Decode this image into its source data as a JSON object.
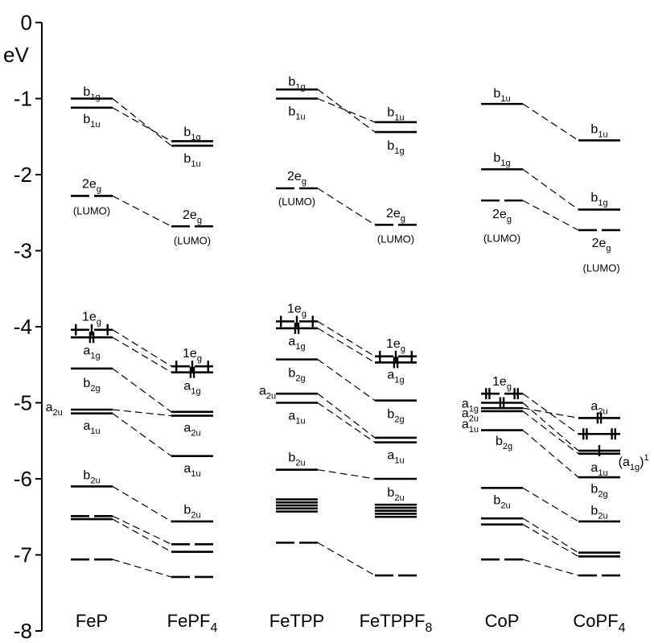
{
  "chart_data": {
    "type": "energy-level-diagram",
    "y_unit": "eV",
    "y_ticks": [
      "0",
      "-1",
      "-2",
      "-3",
      "-4",
      "-5",
      "-6",
      "-7",
      "-8"
    ],
    "ylim": [
      -8,
      0
    ],
    "columns": [
      {
        "name": "FeP",
        "sub": ""
      },
      {
        "name": "FePF",
        "sub": "4"
      },
      {
        "name": "FeTPP",
        "sub": ""
      },
      {
        "name": "FeTPPF",
        "sub": "8"
      },
      {
        "name": "CoP",
        "sub": ""
      },
      {
        "name": "CoPF",
        "sub": "4"
      }
    ],
    "levels": [
      {
        "id": "p1",
        "col": 0,
        "e": -1.0
      },
      {
        "id": "p2",
        "col": 0,
        "e": -1.12
      },
      {
        "id": "p3",
        "col": 0,
        "e": -2.28,
        "split": true
      },
      {
        "id": "p4",
        "col": 0,
        "e": -4.04,
        "split": true,
        "spins": [
          0.12,
          0.5,
          0.88
        ]
      },
      {
        "id": "p5",
        "col": 0,
        "e": -4.14,
        "spins": [
          0.46,
          0.54
        ]
      },
      {
        "id": "p6",
        "col": 0,
        "e": -4.55
      },
      {
        "id": "p7",
        "col": 0,
        "e": -5.09
      },
      {
        "id": "p8",
        "col": 0,
        "e": -5.14
      },
      {
        "id": "p9",
        "col": 0,
        "e": -6.1
      },
      {
        "id": "p10",
        "col": 0,
        "e": -6.49,
        "split": true
      },
      {
        "id": "p11",
        "col": 0,
        "e": -6.53
      },
      {
        "id": "p12",
        "col": 0,
        "e": -7.06,
        "split": true
      },
      {
        "id": "q1",
        "col": 1,
        "e": -1.56
      },
      {
        "id": "q2",
        "col": 1,
        "e": -1.62
      },
      {
        "id": "q3",
        "col": 1,
        "e": -2.68,
        "split": true
      },
      {
        "id": "q4",
        "col": 1,
        "e": -4.52,
        "split": true,
        "spins": [
          0.12,
          0.5,
          0.88
        ]
      },
      {
        "id": "q5",
        "col": 1,
        "e": -4.6,
        "spins": [
          0.46,
          0.54
        ]
      },
      {
        "id": "q6",
        "col": 1,
        "e": -5.12
      },
      {
        "id": "q7",
        "col": 1,
        "e": -5.17
      },
      {
        "id": "q8",
        "col": 1,
        "e": -5.7
      },
      {
        "id": "q9",
        "col": 1,
        "e": -6.56
      },
      {
        "id": "q10",
        "col": 1,
        "e": -6.86,
        "split": true
      },
      {
        "id": "q11",
        "col": 1,
        "e": -6.96
      },
      {
        "id": "q12",
        "col": 1,
        "e": -7.29,
        "split": true
      },
      {
        "id": "r1",
        "col": 2,
        "e": -0.88
      },
      {
        "id": "r2",
        "col": 2,
        "e": -1.0
      },
      {
        "id": "r3",
        "col": 2,
        "e": -2.18,
        "split": true
      },
      {
        "id": "r4",
        "col": 2,
        "e": -3.93,
        "split": true,
        "spins": [
          0.12,
          0.5,
          0.88
        ]
      },
      {
        "id": "r5",
        "col": 2,
        "e": -4.02,
        "spins": [
          0.46,
          0.54
        ]
      },
      {
        "id": "r6",
        "col": 2,
        "e": -4.43
      },
      {
        "id": "r7",
        "col": 2,
        "e": -4.88
      },
      {
        "id": "r8",
        "col": 2,
        "e": -5.0
      },
      {
        "id": "r9",
        "col": 2,
        "e": -5.88
      },
      {
        "id": "r10",
        "col": 2,
        "e": -6.27
      },
      {
        "id": "r11",
        "col": 2,
        "e": -6.31
      },
      {
        "id": "r12",
        "col": 2,
        "e": -6.35
      },
      {
        "id": "r13",
        "col": 2,
        "e": -6.39
      },
      {
        "id": "r14",
        "col": 2,
        "e": -6.43
      },
      {
        "id": "r15",
        "col": 2,
        "e": -6.84,
        "split": true
      },
      {
        "id": "s1",
        "col": 3,
        "e": -1.31
      },
      {
        "id": "s2",
        "col": 3,
        "e": -1.44
      },
      {
        "id": "s3",
        "col": 3,
        "e": -2.66,
        "split": true
      },
      {
        "id": "s4",
        "col": 3,
        "e": -4.39,
        "split": true,
        "spins": [
          0.12,
          0.5,
          0.88
        ]
      },
      {
        "id": "s5",
        "col": 3,
        "e": -4.47,
        "spins": [
          0.46,
          0.54
        ]
      },
      {
        "id": "s6",
        "col": 3,
        "e": -4.97
      },
      {
        "id": "s7",
        "col": 3,
        "e": -5.46
      },
      {
        "id": "s8",
        "col": 3,
        "e": -5.52
      },
      {
        "id": "s9",
        "col": 3,
        "e": -6.0
      },
      {
        "id": "s10",
        "col": 3,
        "e": -6.34
      },
      {
        "id": "s11",
        "col": 3,
        "e": -6.38
      },
      {
        "id": "s12",
        "col": 3,
        "e": -6.42
      },
      {
        "id": "s13",
        "col": 3,
        "e": -6.46
      },
      {
        "id": "s14",
        "col": 3,
        "e": -6.5
      },
      {
        "id": "s15",
        "col": 3,
        "e": -7.27,
        "split": true
      },
      {
        "id": "t1",
        "col": 4,
        "e": -1.07
      },
      {
        "id": "t2",
        "col": 4,
        "e": -1.93
      },
      {
        "id": "t3",
        "col": 4,
        "e": -2.34,
        "split": true
      },
      {
        "id": "t4",
        "col": 4,
        "e": -4.88,
        "split": true,
        "spins": [
          0.12,
          0.2,
          0.8,
          0.88
        ]
      },
      {
        "id": "t5",
        "col": 4,
        "e": -5.0,
        "spins": [
          0.46,
          0.54
        ]
      },
      {
        "id": "t6",
        "col": 4,
        "e": -5.07
      },
      {
        "id": "t7",
        "col": 4,
        "e": -5.11
      },
      {
        "id": "t8",
        "col": 4,
        "e": -5.36
      },
      {
        "id": "t9",
        "col": 4,
        "e": -6.12
      },
      {
        "id": "t10",
        "col": 4,
        "e": -6.52
      },
      {
        "id": "t11",
        "col": 4,
        "e": -6.6
      },
      {
        "id": "t12",
        "col": 4,
        "e": -7.06,
        "split": true
      },
      {
        "id": "u1",
        "col": 5,
        "e": -1.55
      },
      {
        "id": "u2",
        "col": 5,
        "e": -2.46
      },
      {
        "id": "u3",
        "col": 5,
        "e": -2.73,
        "split": true
      },
      {
        "id": "u4",
        "col": 5,
        "e": -5.2,
        "spins": [
          0.46,
          0.54
        ]
      },
      {
        "id": "u5",
        "col": 5,
        "e": -5.41,
        "spins": [
          0.12,
          0.2,
          0.8,
          0.88
        ]
      },
      {
        "id": "u6",
        "col": 5,
        "e": -5.63,
        "spins": [
          0.5
        ]
      },
      {
        "id": "u7",
        "col": 5,
        "e": -5.67
      },
      {
        "id": "u8",
        "col": 5,
        "e": -5.98
      },
      {
        "id": "u9",
        "col": 5,
        "e": -6.56
      },
      {
        "id": "u10",
        "col": 5,
        "e": -6.97
      },
      {
        "id": "u11",
        "col": 5,
        "e": -7.02
      },
      {
        "id": "u12",
        "col": 5,
        "e": -7.27,
        "split": true
      }
    ],
    "connections": [
      [
        "p1",
        "q2"
      ],
      [
        "p2",
        "q1"
      ],
      [
        "p3",
        "q3"
      ],
      [
        "p4",
        "q4"
      ],
      [
        "p5",
        "q5"
      ],
      [
        "p6",
        "q6"
      ],
      [
        "p7",
        "q7"
      ],
      [
        "p8",
        "q8"
      ],
      [
        "p9",
        "q9"
      ],
      [
        "p10",
        "q10"
      ],
      [
        "p11",
        "q11"
      ],
      [
        "p12",
        "q12"
      ],
      [
        "r1",
        "s2"
      ],
      [
        "r2",
        "s1"
      ],
      [
        "r3",
        "s3"
      ],
      [
        "r4",
        "s4"
      ],
      [
        "r5",
        "s5"
      ],
      [
        "r6",
        "s6"
      ],
      [
        "r7",
        "s7"
      ],
      [
        "r8",
        "s8"
      ],
      [
        "r9",
        "s9"
      ],
      [
        "r15",
        "s15"
      ],
      [
        "t1",
        "u1"
      ],
      [
        "t2",
        "u2"
      ],
      [
        "t3",
        "u3"
      ],
      [
        "t4",
        "u5"
      ],
      [
        "t5",
        "u6"
      ],
      [
        "t6",
        "u4"
      ],
      [
        "t7",
        "u7"
      ],
      [
        "t8",
        "u8"
      ],
      [
        "t9",
        "u9"
      ],
      [
        "t10",
        "u10"
      ],
      [
        "t11",
        "u11"
      ],
      [
        "t12",
        "u12"
      ]
    ],
    "labels": [
      {
        "col": 0,
        "e": -0.91,
        "dx": 0.5,
        "main": "b",
        "sub": "1g"
      },
      {
        "col": 0,
        "e": -1.27,
        "dx": 0.5,
        "main": "b",
        "sub": "1u"
      },
      {
        "col": 0,
        "e": -2.12,
        "dx": 0.5,
        "main": "2e",
        "sub": "g"
      },
      {
        "col": 0,
        "e": -2.47,
        "dx": 0.5,
        "main": "(LUMO)",
        "small": true
      },
      {
        "col": 0,
        "e": -3.87,
        "dx": 0.5,
        "main": "1e",
        "sub": "g"
      },
      {
        "col": 0,
        "e": -4.31,
        "dx": 0.5,
        "main": "a",
        "sub": "1g"
      },
      {
        "col": 0,
        "e": -4.74,
        "dx": 0.5,
        "main": "b",
        "sub": "2g"
      },
      {
        "col": 0,
        "e": -5.06,
        "dx": -0.4,
        "main": "a",
        "sub": "2u"
      },
      {
        "col": 0,
        "e": -5.3,
        "dx": 0.5,
        "main": "a",
        "sub": "1u"
      },
      {
        "col": 0,
        "e": -5.95,
        "dx": 0.5,
        "main": "b",
        "sub": "2u"
      },
      {
        "col": 1,
        "e": -1.44,
        "dx": 0.5,
        "main": "b",
        "sub": "1g"
      },
      {
        "col": 1,
        "e": -1.79,
        "dx": 0.5,
        "main": "b",
        "sub": "1u"
      },
      {
        "col": 1,
        "e": -2.53,
        "dx": 0.5,
        "main": "2e",
        "sub": "g"
      },
      {
        "col": 1,
        "e": -2.86,
        "dx": 0.5,
        "main": "(LUMO)",
        "small": true
      },
      {
        "col": 1,
        "e": -4.35,
        "dx": 0.5,
        "main": "1e",
        "sub": "g"
      },
      {
        "col": 1,
        "e": -4.78,
        "dx": 0.5,
        "main": "a",
        "sub": "1g"
      },
      {
        "col": 1,
        "e": -5.33,
        "dx": 0.5,
        "main": "a",
        "sub": "2u"
      },
      {
        "col": 1,
        "e": -5.86,
        "dx": 0.5,
        "main": "a",
        "sub": "1u"
      },
      {
        "col": 1,
        "e": -6.41,
        "dx": 0.5,
        "main": "b",
        "sub": "2u"
      },
      {
        "col": 2,
        "e": -0.78,
        "dx": 0.5,
        "main": "b",
        "sub": "1g"
      },
      {
        "col": 2,
        "e": -1.17,
        "dx": 0.5,
        "main": "b",
        "sub": "1u"
      },
      {
        "col": 2,
        "e": -2.02,
        "dx": 0.5,
        "main": "2e",
        "sub": "g"
      },
      {
        "col": 2,
        "e": -2.35,
        "dx": 0.5,
        "main": "(LUMO)",
        "small": true
      },
      {
        "col": 2,
        "e": -3.76,
        "dx": 0.5,
        "main": "1e",
        "sub": "g"
      },
      {
        "col": 2,
        "e": -4.19,
        "dx": 0.5,
        "main": "a",
        "sub": "1g"
      },
      {
        "col": 2,
        "e": -4.61,
        "dx": 0.5,
        "main": "b",
        "sub": "2g"
      },
      {
        "col": 2,
        "e": -4.84,
        "dx": -0.2,
        "main": "a",
        "sub": "2u"
      },
      {
        "col": 2,
        "e": -5.17,
        "dx": 0.5,
        "main": "a",
        "sub": "1u"
      },
      {
        "col": 2,
        "e": -5.72,
        "dx": 0.5,
        "main": "b",
        "sub": "2u"
      },
      {
        "col": 3,
        "e": -1.18,
        "dx": 0.5,
        "main": "b",
        "sub": "1u"
      },
      {
        "col": 3,
        "e": -1.62,
        "dx": 0.5,
        "main": "b",
        "sub": "1g"
      },
      {
        "col": 3,
        "e": -2.51,
        "dx": 0.5,
        "main": "2e",
        "sub": "g"
      },
      {
        "col": 3,
        "e": -2.84,
        "dx": 0.5,
        "main": "(LUMO)",
        "small": true
      },
      {
        "col": 3,
        "e": -4.22,
        "dx": 0.5,
        "main": "1e",
        "sub": "g"
      },
      {
        "col": 3,
        "e": -4.63,
        "dx": 0.5,
        "main": "a",
        "sub": "1g"
      },
      {
        "col": 3,
        "e": -5.15,
        "dx": 0.5,
        "main": "b",
        "sub": "2g"
      },
      {
        "col": 3,
        "e": -5.69,
        "dx": 0.5,
        "main": "a",
        "sub": "1u"
      },
      {
        "col": 3,
        "e": -6.18,
        "dx": 0.5,
        "main": "b",
        "sub": "2u"
      },
      {
        "col": 4,
        "e": -0.93,
        "dx": 0.5,
        "main": "b",
        "sub": "1u"
      },
      {
        "col": 4,
        "e": -1.78,
        "dx": 0.5,
        "main": "b",
        "sub": "1g"
      },
      {
        "col": 4,
        "e": -2.52,
        "dx": 0.5,
        "main": "2e",
        "sub": "g"
      },
      {
        "col": 4,
        "e": -2.83,
        "dx": 0.5,
        "main": "(LUMO)",
        "small": true
      },
      {
        "col": 4,
        "e": -4.72,
        "dx": 0.5,
        "main": "1e",
        "sub": "g"
      },
      {
        "col": 4,
        "e": -5.01,
        "dx": -0.26,
        "main": "a",
        "sub": "1g"
      },
      {
        "col": 4,
        "e": -5.14,
        "dx": -0.26,
        "main": "a",
        "sub": "2u"
      },
      {
        "col": 4,
        "e": -5.28,
        "dx": -0.26,
        "main": "a",
        "sub": "1u"
      },
      {
        "col": 4,
        "e": -5.5,
        "dx": 0.55,
        "main": "b",
        "sub": "2g"
      },
      {
        "col": 4,
        "e": -6.28,
        "dx": 0.5,
        "main": "b",
        "sub": "2u"
      },
      {
        "col": 5,
        "e": -1.4,
        "dx": 0.5,
        "main": "b",
        "sub": "1u"
      },
      {
        "col": 5,
        "e": -2.3,
        "dx": 0.5,
        "main": "b",
        "sub": "1g"
      },
      {
        "col": 5,
        "e": -2.9,
        "dx": 0.55,
        "main": "2e",
        "sub": "g"
      },
      {
        "col": 5,
        "e": -3.22,
        "dx": 0.55,
        "main": "(LUMO)",
        "small": true
      },
      {
        "col": 5,
        "e": -5.04,
        "dx": 0.5,
        "main": "a",
        "sub": "2u"
      },
      {
        "col": 5,
        "e": -5.78,
        "dx": 1.32,
        "main": "(a",
        "sub": "1g",
        "after": ")",
        "sup": "1"
      },
      {
        "col": 5,
        "e": -5.85,
        "dx": 0.5,
        "main": "a",
        "sub": "1u"
      },
      {
        "col": 5,
        "e": -6.13,
        "dx": 0.5,
        "main": "b",
        "sub": "2g"
      },
      {
        "col": 5,
        "e": -6.42,
        "dx": 0.5,
        "main": "b",
        "sub": "2u"
      }
    ]
  }
}
